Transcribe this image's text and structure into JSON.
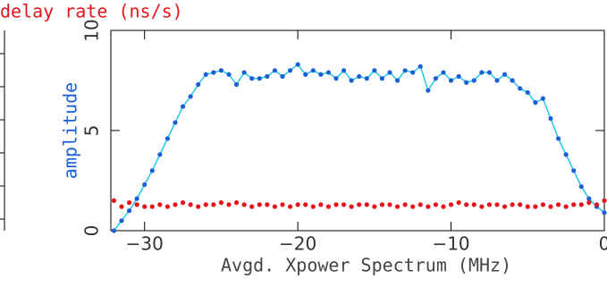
{
  "chart_data": {
    "type": "scatter",
    "title": "delay rate (ns/s)",
    "xlabel": "Avgd. Xpower Spectrum (MHz)",
    "ylabel": "amplitude",
    "xlim": [
      -32.2,
      0
    ],
    "ylim": [
      0,
      10
    ],
    "xticks": [
      {
        "value": -30,
        "label": "−30"
      },
      {
        "value": -20,
        "label": "−20"
      },
      {
        "value": -10,
        "label": "−10"
      },
      0
    ],
    "yticks": [
      0,
      5,
      10
    ],
    "x": [
      -32,
      -31.5,
      -31,
      -30.5,
      -30,
      -29.5,
      -29,
      -28.5,
      -28,
      -27.5,
      -27,
      -26.5,
      -26,
      -25.5,
      -25,
      -24.5,
      -24,
      -23.5,
      -23,
      -22.5,
      -22,
      -21.5,
      -21,
      -20.5,
      -20,
      -19.5,
      -19,
      -18.5,
      -18,
      -17.5,
      -17,
      -16.5,
      -16,
      -15.5,
      -15,
      -14.5,
      -14,
      -13.5,
      -13,
      -12.5,
      -12,
      -11.5,
      -11,
      -10.5,
      -10,
      -9.5,
      -9,
      -8.5,
      -8,
      -7.5,
      -7,
      -6.5,
      -6,
      -5.5,
      -5,
      -4.5,
      -4,
      -3.5,
      -3,
      -2.5,
      -2,
      -1.5,
      -1,
      -0.5,
      0
    ],
    "series": [
      {
        "color": "#1a5fd6",
        "values": [
          0.0,
          0.5,
          1.0,
          1.6,
          2.3,
          3.0,
          3.8,
          4.6,
          5.4,
          6.2,
          6.7,
          7.3,
          7.8,
          7.9,
          8.0,
          7.8,
          7.3,
          7.9,
          7.6,
          7.6,
          7.7,
          8.0,
          7.7,
          8.0,
          8.3,
          7.8,
          8.0,
          7.8,
          7.9,
          7.6,
          8.0,
          7.5,
          7.7,
          7.6,
          8.0,
          7.6,
          7.9,
          7.5,
          8.0,
          7.9,
          8.2,
          7.0,
          7.6,
          7.9,
          7.5,
          7.7,
          7.4,
          7.5,
          7.9,
          7.9,
          7.5,
          7.8,
          7.5,
          7.1,
          6.9,
          6.4,
          6.6,
          5.6,
          4.6,
          3.8,
          3.0,
          2.2,
          1.6,
          1.2,
          0.9
        ]
      },
      {
        "color": "#e8141c",
        "values": [
          1.5,
          1.2,
          1.4,
          1.3,
          1.2,
          1.2,
          1.3,
          1.2,
          1.3,
          1.4,
          1.3,
          1.2,
          1.3,
          1.3,
          1.4,
          1.3,
          1.4,
          1.3,
          1.2,
          1.3,
          1.3,
          1.2,
          1.3,
          1.2,
          1.3,
          1.3,
          1.2,
          1.3,
          1.2,
          1.3,
          1.3,
          1.2,
          1.3,
          1.3,
          1.2,
          1.3,
          1.3,
          1.2,
          1.3,
          1.2,
          1.3,
          1.2,
          1.3,
          1.2,
          1.3,
          1.4,
          1.3,
          1.3,
          1.2,
          1.3,
          1.3,
          1.2,
          1.3,
          1.3,
          1.2,
          1.2,
          1.3,
          1.2,
          1.3,
          1.2,
          1.3,
          1.3,
          1.4,
          1.3,
          1.5
        ]
      }
    ]
  }
}
